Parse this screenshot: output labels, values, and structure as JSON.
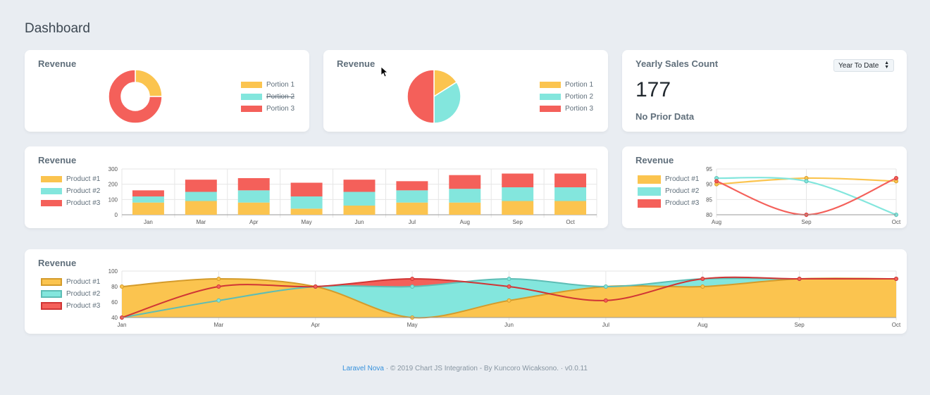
{
  "page": {
    "title": "Dashboard"
  },
  "colors": {
    "yellow": "#fbc44f",
    "teal": "#83e6dd",
    "red": "#f4605a",
    "yellow_line": "#d49b2b",
    "teal_line": "#5dbdb5",
    "red_line": "#d03535"
  },
  "cards": {
    "donut": {
      "title": "Revenue",
      "legend": [
        "Portion 1",
        "Portion 2",
        "Portion 3"
      ],
      "hidden_index": 1,
      "chart_data": {
        "type": "pie",
        "style": "doughnut",
        "labels": [
          "Portion 1",
          "Portion 3"
        ],
        "values": [
          25,
          75
        ]
      }
    },
    "pie": {
      "title": "Revenue",
      "legend": [
        "Portion 1",
        "Portion 2",
        "Portion 3"
      ],
      "chart_data": {
        "type": "pie",
        "labels": [
          "Portion 1",
          "Portion 2",
          "Portion 3"
        ],
        "values": [
          16,
          34,
          50
        ]
      }
    },
    "yearly": {
      "title": "Yearly Sales Count",
      "value": "177",
      "note": "No Prior Data",
      "range_select": "Year To Date"
    },
    "bar": {
      "title": "Revenue",
      "legend": [
        "Product #1",
        "Product #2",
        "Product #3"
      ],
      "chart_data": {
        "type": "bar",
        "stacked": true,
        "categories": [
          "Jan",
          "Mar",
          "Apr",
          "May",
          "Jun",
          "Jul",
          "Aug",
          "Sep",
          "Oct"
        ],
        "yticks": [
          0,
          100,
          200,
          300
        ],
        "ylim": [
          0,
          300
        ],
        "series": [
          {
            "name": "Product #1",
            "values": [
              80,
              90,
              80,
              40,
              60,
              80,
              80,
              90,
              90
            ]
          },
          {
            "name": "Product #2",
            "values": [
              40,
              60,
              80,
              80,
              90,
              80,
              90,
              90,
              90
            ]
          },
          {
            "name": "Product #3",
            "values": [
              40,
              80,
              80,
              90,
              80,
              60,
              90,
              90,
              90
            ]
          }
        ]
      }
    },
    "line": {
      "title": "Revenue",
      "legend": [
        "Product #1",
        "Product #2",
        "Product #3"
      ],
      "chart_data": {
        "type": "line",
        "x": [
          "Aug",
          "Sep",
          "Oct"
        ],
        "yticks": [
          80,
          85,
          90,
          95
        ],
        "ylim": [
          80,
          95
        ],
        "series": [
          {
            "name": "Product #1",
            "values": [
              90,
              92,
              91
            ]
          },
          {
            "name": "Product #2",
            "values": [
              92,
              91,
              80
            ]
          },
          {
            "name": "Product #3",
            "values": [
              91,
              80,
              92
            ]
          }
        ]
      }
    },
    "area": {
      "title": "Revenue",
      "legend": [
        "Product #1",
        "Product #2",
        "Product #3"
      ],
      "chart_data": {
        "type": "area",
        "x": [
          "Jan",
          "Mar",
          "Apr",
          "May",
          "Jun",
          "Jul",
          "Aug",
          "Sep",
          "Oct"
        ],
        "yticks": [
          40,
          60,
          80,
          100
        ],
        "ylim": [
          40,
          100
        ],
        "series": [
          {
            "name": "Product #1",
            "values": [
              80,
              90,
              80,
              40,
              62,
              80,
              80,
              90,
              90
            ]
          },
          {
            "name": "Product #2",
            "values": [
              40,
              62,
              80,
              80,
              90,
              80,
              90,
              90,
              90
            ]
          },
          {
            "name": "Product #3",
            "values": [
              40,
              80,
              80,
              90,
              80,
              62,
              90,
              90,
              90
            ]
          }
        ]
      }
    }
  },
  "footer": {
    "link": "Laravel Nova",
    "text": "· © 2019 Chart JS Integration - By Kuncoro Wicaksono. · v0.0.11"
  }
}
